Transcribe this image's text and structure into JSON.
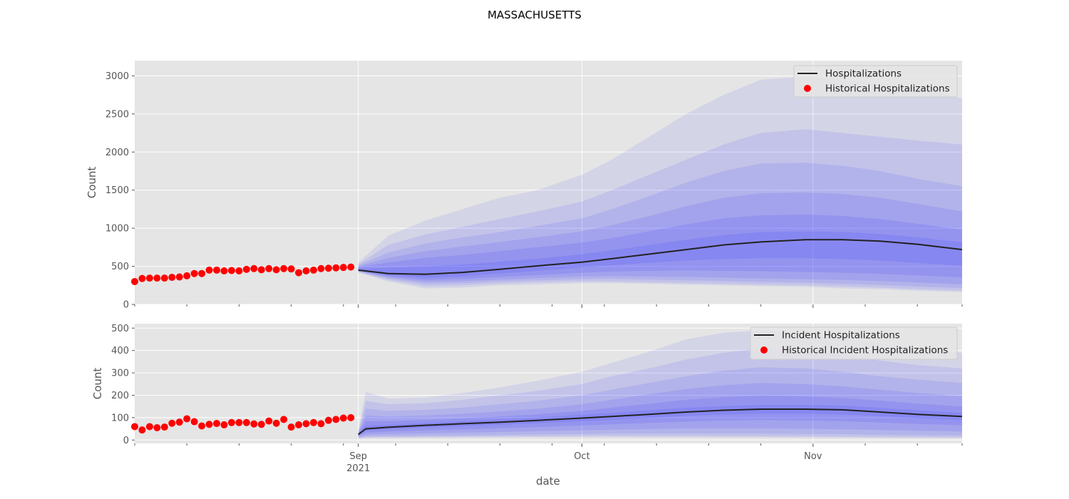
{
  "title": "MASSACHUSETTS",
  "colors": {
    "background": "#e5e5e5",
    "grid": "#ffffff",
    "band": "#4444ff",
    "median": "#222222",
    "historical": "#ff0000"
  },
  "x_axis": {
    "label": "date",
    "range": [
      "2021-08-02",
      "2021-11-21"
    ],
    "major_ticks": [
      {
        "date": "2021-09-01",
        "label": "Sep",
        "sublabel": "2021"
      },
      {
        "date": "2021-10-01",
        "label": "Oct",
        "sublabel": ""
      },
      {
        "date": "2021-11-01",
        "label": "Nov",
        "sublabel": ""
      }
    ],
    "minor_ticks": [
      "2021-08-02",
      "2021-08-09",
      "2021-08-16",
      "2021-08-23",
      "2021-08-30",
      "2021-09-06",
      "2021-09-13",
      "2021-09-20",
      "2021-09-27",
      "2021-10-04",
      "2021-10-11",
      "2021-10-18",
      "2021-10-25",
      "2021-11-08",
      "2021-11-15",
      "2021-11-21"
    ]
  },
  "chart_data": [
    {
      "type": "area",
      "ylabel": "Count",
      "ylim": [
        0,
        3200
      ],
      "yticks": [
        0,
        500,
        1000,
        1500,
        2000,
        2500,
        3000
      ],
      "grid": true,
      "legend_position": "top-right",
      "legend": [
        "Hospitalizations",
        "Historical Hospitalizations"
      ],
      "historical": {
        "name": "Historical Hospitalizations",
        "start_date": "2021-08-02",
        "values": [
          300,
          340,
          345,
          345,
          345,
          355,
          360,
          375,
          405,
          405,
          450,
          450,
          440,
          445,
          440,
          460,
          470,
          455,
          470,
          455,
          470,
          465,
          415,
          440,
          450,
          470,
          475,
          480,
          485,
          490
        ]
      },
      "forecast": {
        "name": "Hospitalizations",
        "dates": [
          "2021-09-01",
          "2021-09-05",
          "2021-09-10",
          "2021-09-15",
          "2021-09-20",
          "2021-09-25",
          "2021-10-01",
          "2021-10-05",
          "2021-10-10",
          "2021-10-15",
          "2021-10-20",
          "2021-10-25",
          "2021-10-31",
          "2021-11-05",
          "2021-11-10",
          "2021-11-15",
          "2021-11-21"
        ],
        "median": [
          450,
          405,
          395,
          420,
          460,
          505,
          555,
          600,
          660,
          720,
          780,
          820,
          850,
          850,
          830,
          790,
          720
        ],
        "bands": [
          {
            "lower": [
              420,
              300,
              210,
              220,
              250,
              260,
              280,
              280,
              270,
              260,
              250,
              240,
              230,
              210,
              200,
              180,
              160
            ],
            "upper": [
              550,
              900,
              1100,
              1250,
              1400,
              1500,
              1700,
              1900,
              2200,
              2500,
              2750,
              2950,
              2990,
              2950,
              2900,
              2850,
              2700
            ]
          },
          {
            "lower": [
              425,
              320,
              240,
              250,
              275,
              290,
              300,
              300,
              290,
              280,
              270,
              260,
              250,
              235,
              220,
              200,
              180
            ],
            "upper": [
              530,
              780,
              920,
              1020,
              1120,
              1220,
              1350,
              1500,
              1700,
              1900,
              2100,
              2250,
              2300,
              2250,
              2200,
              2150,
              2100
            ]
          },
          {
            "lower": [
              430,
              340,
              270,
              280,
              300,
              315,
              330,
              335,
              325,
              315,
              305,
              295,
              285,
              270,
              255,
              235,
              215
            ],
            "upper": [
              515,
              680,
              800,
              880,
              950,
              1030,
              1130,
              1250,
              1420,
              1600,
              1750,
              1850,
              1860,
              1820,
              1750,
              1650,
              1550
            ]
          },
          {
            "lower": [
              435,
              355,
              295,
              305,
              325,
              345,
              365,
              370,
              365,
              360,
              350,
              340,
              330,
              320,
              305,
              285,
              265
            ],
            "upper": [
              500,
              610,
              700,
              760,
              820,
              880,
              960,
              1040,
              1160,
              1290,
              1400,
              1460,
              1470,
              1450,
              1400,
              1320,
              1220
            ]
          },
          {
            "lower": [
              440,
              370,
              320,
              335,
              360,
              385,
              415,
              430,
              440,
              445,
              440,
              435,
              425,
              415,
              400,
              380,
              355
            ],
            "upper": [
              490,
              550,
              610,
              650,
              700,
              750,
              810,
              870,
              960,
              1050,
              1130,
              1170,
              1180,
              1160,
              1120,
              1060,
              980
            ]
          },
          {
            "lower": [
              445,
              385,
              350,
              370,
              405,
              440,
              485,
              515,
              545,
              575,
              595,
              605,
              605,
              595,
              575,
              545,
              505
            ],
            "upper": [
              470,
              480,
              500,
              525,
              560,
              600,
              660,
              710,
              780,
              850,
              910,
              950,
              960,
              950,
              925,
              880,
              815
            ]
          }
        ]
      }
    },
    {
      "type": "area",
      "ylabel": "Count",
      "ylim": [
        -15,
        520
      ],
      "yticks": [
        0,
        100,
        200,
        300,
        400,
        500
      ],
      "grid": true,
      "legend_position": "top-right",
      "legend": [
        "Incident Hospitalizations",
        "Historical Incident Hospitalizations"
      ],
      "historical": {
        "name": "Historical Incident Hospitalizations",
        "start_date": "2021-08-02",
        "values": [
          60,
          45,
          60,
          55,
          58,
          75,
          80,
          95,
          82,
          63,
          70,
          74,
          68,
          78,
          78,
          78,
          72,
          70,
          85,
          75,
          92,
          58,
          68,
          73,
          78,
          73,
          88,
          92,
          98,
          100
        ]
      },
      "forecast": {
        "name": "Incident Hospitalizations",
        "dates": [
          "2021-09-01",
          "2021-09-02",
          "2021-09-05",
          "2021-09-10",
          "2021-09-15",
          "2021-09-20",
          "2021-09-25",
          "2021-10-01",
          "2021-10-05",
          "2021-10-10",
          "2021-10-15",
          "2021-10-20",
          "2021-10-25",
          "2021-10-31",
          "2021-11-05",
          "2021-11-10",
          "2021-11-15",
          "2021-11-21"
        ],
        "median": [
          25,
          50,
          57,
          66,
          73,
          80,
          88,
          98,
          105,
          115,
          125,
          133,
          138,
          138,
          135,
          125,
          115,
          105
        ],
        "bands": [
          {
            "lower": [
              5,
              8,
              9,
              10,
              11,
              12,
              12,
              12,
              12,
              12,
              12,
              11,
              11,
              10,
              10,
              9,
              9,
              8
            ],
            "upper": [
              40,
              215,
              185,
              190,
              210,
              235,
              265,
              305,
              345,
              395,
              450,
              480,
              490,
              480,
              455,
              430,
              410,
              390
            ]
          },
          {
            "lower": [
              8,
              12,
              13,
              14,
              15,
              16,
              17,
              18,
              18,
              18,
              18,
              17,
              17,
              16,
              15,
              14,
              13,
              12
            ],
            "upper": [
              37,
              175,
              160,
              165,
              180,
              200,
              220,
              250,
              285,
              320,
              360,
              390,
              410,
              400,
              380,
              355,
              335,
              320
            ]
          },
          {
            "lower": [
              11,
              17,
              18,
              19,
              21,
              23,
              25,
              27,
              28,
              29,
              29,
              29,
              28,
              27,
              26,
              24,
              22,
              20
            ],
            "upper": [
              34,
              140,
              130,
              135,
              145,
              160,
              175,
              200,
              225,
              255,
              285,
              310,
              325,
              320,
              305,
              285,
              270,
              255
            ]
          },
          {
            "lower": [
              15,
              24,
              27,
              30,
              33,
              36,
              39,
              43,
              46,
              49,
              51,
              52,
              52,
              50,
              48,
              45,
              41,
              38
            ],
            "upper": [
              32,
              110,
              105,
              110,
              118,
              128,
              140,
              160,
              180,
              205,
              228,
              245,
              255,
              250,
              240,
              225,
              210,
              195
            ]
          },
          {
            "lower": [
              19,
              33,
              38,
              43,
              48,
              53,
              58,
              65,
              70,
              76,
              82,
              87,
              89,
              87,
              84,
              78,
              72,
              66
            ],
            "upper": [
              30,
              85,
              85,
              90,
              97,
              105,
              115,
              130,
              145,
              162,
              180,
              192,
              198,
              195,
              188,
              176,
              163,
              150
            ]
          },
          {
            "lower": [
              22,
              42,
              48,
              56,
              62,
              68,
              75,
              84,
              90,
              99,
              108,
              114,
              118,
              117,
              114,
              106,
              97,
              89
            ],
            "upper": [
              28,
              65,
              68,
              76,
              84,
              92,
              101,
              113,
              121,
              133,
              144,
              152,
              157,
              157,
              154,
              144,
              133,
              121
            ]
          }
        ]
      }
    }
  ]
}
